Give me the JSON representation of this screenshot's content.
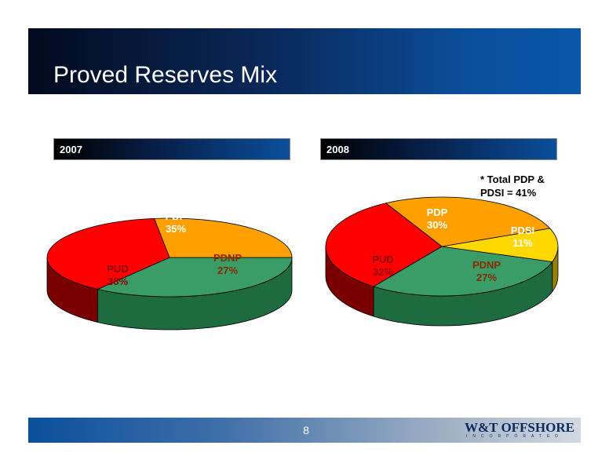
{
  "slide": {
    "title": "Proved Reserves Mix",
    "page_number": "8"
  },
  "note": {
    "line1": "* Total PDP &",
    "line2": "PDSI = 41%"
  },
  "logo": {
    "main": "W&T OFFSHORE",
    "sub": "INCORPORATED"
  },
  "colors": {
    "PDP": "#3a9c66",
    "PDNP": "#ff9f00",
    "PUD": "#ff0000",
    "PDSI": "#ffd800"
  },
  "chart_data": [
    {
      "type": "pie",
      "title": "2007",
      "categories": [
        "PDP",
        "PDNP",
        "PUD"
      ],
      "values": [
        35,
        27,
        38
      ],
      "labels": [
        "35%",
        "27%",
        "38%"
      ]
    },
    {
      "type": "pie",
      "title": "2008",
      "categories": [
        "PDP",
        "PDSI",
        "PDNP",
        "PUD"
      ],
      "values": [
        30,
        11,
        27,
        32
      ],
      "labels": [
        "30%",
        "11%",
        "27%",
        "32%"
      ]
    }
  ]
}
